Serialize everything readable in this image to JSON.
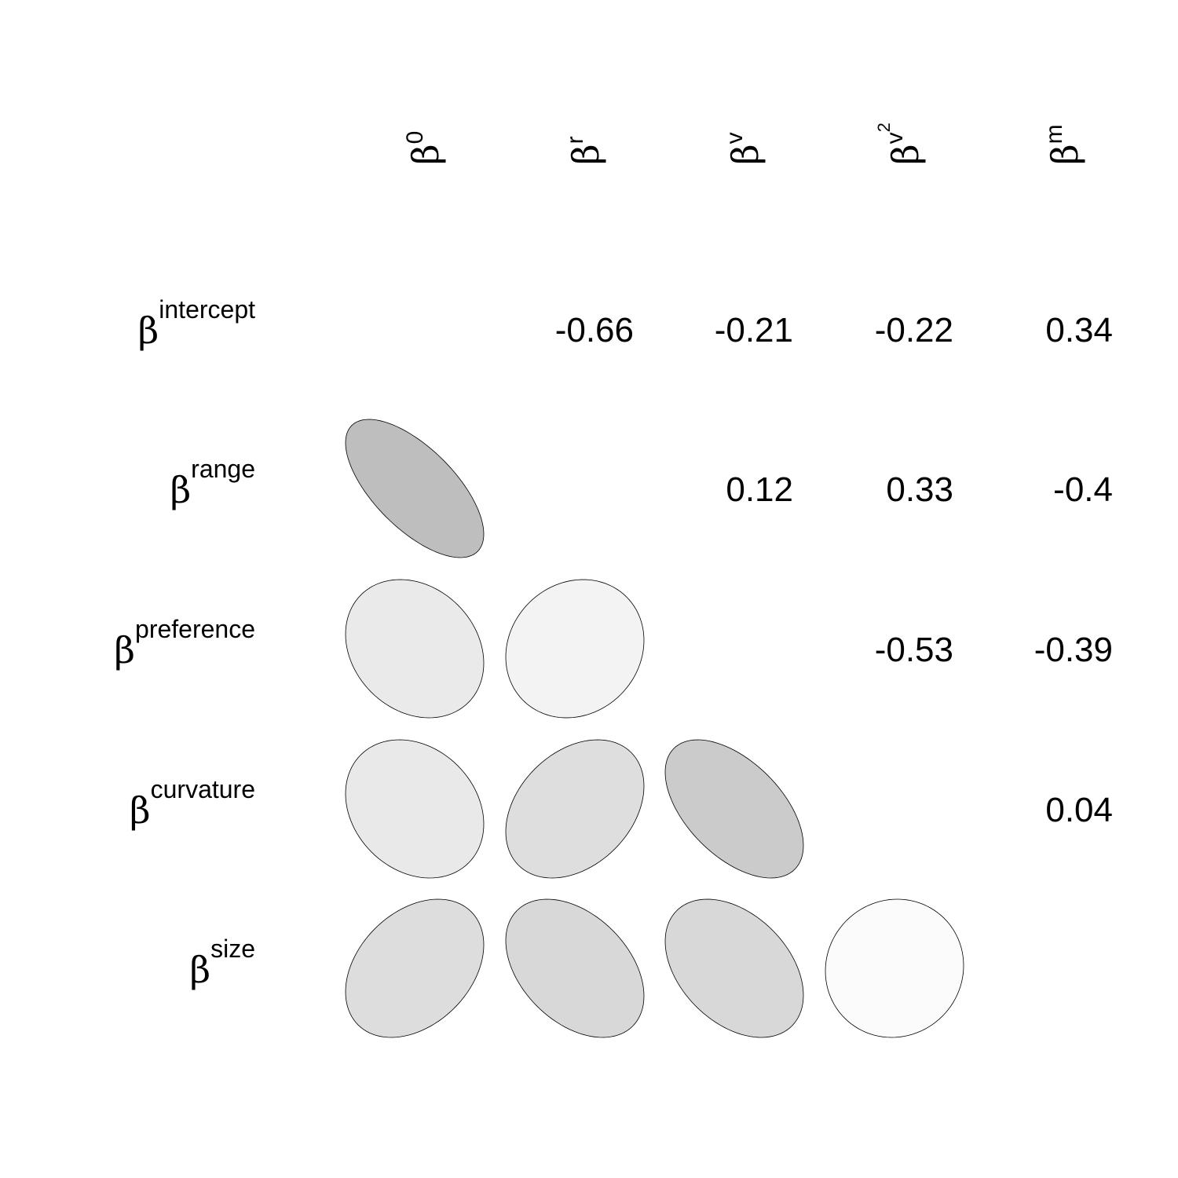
{
  "chart_data": {
    "type": "heatmap",
    "title": "",
    "columns": [
      {
        "symbol": "β",
        "sup": "0",
        "sup2": ""
      },
      {
        "symbol": "β",
        "sup": "r",
        "sup2": ""
      },
      {
        "symbol": "β",
        "sup": "v",
        "sup2": ""
      },
      {
        "symbol": "β",
        "sup": "v",
        "sup2": "2"
      },
      {
        "symbol": "β",
        "sup": "m",
        "sup2": ""
      }
    ],
    "rows": [
      {
        "symbol": "β",
        "sup": "intercept"
      },
      {
        "symbol": "β",
        "sup": "range"
      },
      {
        "symbol": "β",
        "sup": "preference"
      },
      {
        "symbol": "β",
        "sup": "curvature"
      },
      {
        "symbol": "β",
        "sup": "size"
      }
    ],
    "upper_labels": [
      {
        "row": 0,
        "col": 1,
        "text": "-0.66"
      },
      {
        "row": 0,
        "col": 2,
        "text": "-0.21"
      },
      {
        "row": 0,
        "col": 3,
        "text": "-0.22"
      },
      {
        "row": 0,
        "col": 4,
        "text": "0.34"
      },
      {
        "row": 1,
        "col": 2,
        "text": "0.12"
      },
      {
        "row": 1,
        "col": 3,
        "text": "0.33"
      },
      {
        "row": 1,
        "col": 4,
        "text": "-0.4"
      },
      {
        "row": 2,
        "col": 3,
        "text": "-0.53"
      },
      {
        "row": 2,
        "col": 4,
        "text": "-0.39"
      },
      {
        "row": 3,
        "col": 4,
        "text": "0.04"
      }
    ],
    "lower_ellipses": [
      {
        "row": 1,
        "col": 0,
        "value": -0.66
      },
      {
        "row": 2,
        "col": 0,
        "value": -0.21
      },
      {
        "row": 2,
        "col": 1,
        "value": 0.12
      },
      {
        "row": 3,
        "col": 0,
        "value": -0.22
      },
      {
        "row": 3,
        "col": 1,
        "value": 0.33
      },
      {
        "row": 3,
        "col": 2,
        "value": -0.53
      },
      {
        "row": 4,
        "col": 0,
        "value": 0.34
      },
      {
        "row": 4,
        "col": 1,
        "value": -0.4
      },
      {
        "row": 4,
        "col": 2,
        "value": -0.39
      },
      {
        "row": 4,
        "col": 3,
        "value": 0.04
      }
    ],
    "fill_colors": {
      "low": "#ffffff",
      "high": "#b0b0b0"
    },
    "stroke_color": "#000000"
  }
}
